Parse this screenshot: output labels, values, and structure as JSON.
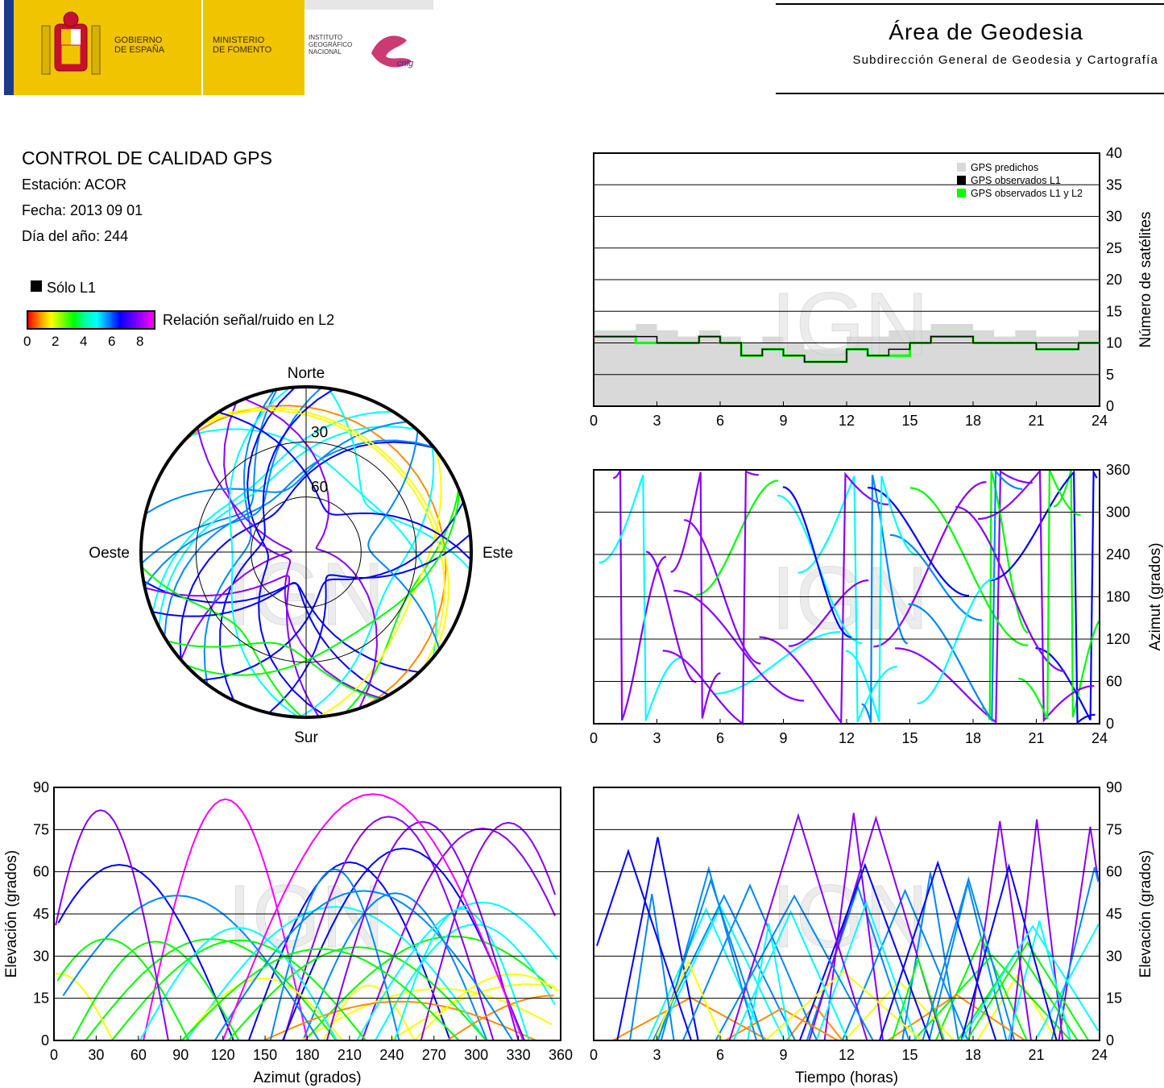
{
  "header": {
    "gobierno": [
      "GOBIERNO",
      "DE ESPAÑA"
    ],
    "ministerio": [
      "MINISTERIO",
      "DE FOMENTO"
    ],
    "instituto": [
      "INSTITUTO",
      "GEOGRÁFICO",
      "NACIONAL"
    ],
    "cnig_logo": "cnig",
    "area_title": "Área de Geodesia",
    "area_subtitle": "Subdirección General de Geodesia y Cartografía"
  },
  "info": {
    "title": "CONTROL DE CALIDAD GPS",
    "station": "Estación: ACOR",
    "date": "Fecha: 2013 09 01",
    "doy": "Día del año: 244",
    "legend_l1": "Sólo L1",
    "colorbar_label": "Relación señal/ruido en L2",
    "colorbar_ticks": [
      "0",
      "2",
      "4",
      "6",
      "8"
    ]
  },
  "watermark": "IGN",
  "colors": {
    "predicted": "#d9d9d9",
    "observed_l1": "#000000",
    "observed_l1l2": "#00ff00",
    "arc_palette": [
      "#ff0000",
      "#ff8c00",
      "#ffff00",
      "#00ff00",
      "#00ffff",
      "#0088ff",
      "#0000ff",
      "#8800ff",
      "#ff00ff"
    ]
  },
  "chart_data": [
    {
      "type": "area",
      "id": "satellite-count",
      "ylabel": "Número de satélites",
      "ylim": [
        0,
        40
      ],
      "yticks": [
        "0",
        "5",
        "10",
        "15",
        "20",
        "25",
        "30",
        "35",
        "40"
      ],
      "xlim": [
        0,
        24
      ],
      "xticks": [
        "0",
        "3",
        "6",
        "9",
        "12",
        "15",
        "18",
        "21",
        "24"
      ],
      "legend": [
        "GPS predichos",
        "GPS observados L1",
        "GPS observados L1 y L2"
      ],
      "legend_position": "top-right",
      "x": [
        0,
        1,
        2,
        3,
        4,
        5,
        6,
        7,
        8,
        9,
        10,
        11,
        12,
        13,
        14,
        15,
        16,
        17,
        18,
        19,
        20,
        21,
        22,
        23,
        24
      ],
      "series": [
        {
          "name": "GPS predichos",
          "values": [
            12,
            12,
            13,
            12,
            11,
            12,
            11,
            10,
            11,
            10,
            9,
            9,
            11,
            11,
            12,
            12,
            13,
            13,
            12,
            11,
            12,
            11,
            11,
            12,
            12
          ]
        },
        {
          "name": "GPS observados L1",
          "values": [
            11,
            11,
            11,
            10,
            10,
            11,
            10,
            8,
            9,
            8,
            7,
            7,
            9,
            8,
            9,
            10,
            11,
            11,
            10,
            10,
            10,
            9,
            9,
            10,
            10
          ]
        },
        {
          "name": "GPS observados L1 y L2",
          "values": [
            11,
            11,
            10,
            10,
            10,
            11,
            10,
            8,
            9,
            8,
            7,
            7,
            9,
            8,
            8,
            10,
            11,
            11,
            10,
            10,
            10,
            9,
            9,
            10,
            10
          ]
        }
      ]
    },
    {
      "type": "scatter",
      "id": "skyplot",
      "labels": {
        "north": "Norte",
        "south": "Sur",
        "east": "Este",
        "west": "Oeste"
      },
      "ring_labels": [
        "30",
        "60"
      ],
      "rings_elevation": [
        0,
        30,
        60
      ]
    },
    {
      "type": "scatter",
      "id": "azimuth-time",
      "ylabel": "Azimut (grados)",
      "ylim": [
        0,
        360
      ],
      "yticks": [
        "0",
        "60",
        "120",
        "180",
        "240",
        "300",
        "360"
      ],
      "xlim": [
        0,
        24
      ],
      "xticks": [
        "0",
        "3",
        "6",
        "9",
        "12",
        "15",
        "18",
        "21",
        "24"
      ]
    },
    {
      "type": "scatter",
      "id": "elevation-azimuth",
      "xlabel": "Azimut (grados)",
      "ylabel": "Elevación (grados)",
      "xlim": [
        0,
        360
      ],
      "ylim": [
        0,
        90
      ],
      "xticks": [
        "0",
        "30",
        "60",
        "90",
        "120",
        "150",
        "180",
        "210",
        "240",
        "270",
        "300",
        "330",
        "360"
      ],
      "yticks": [
        "0",
        "15",
        "30",
        "45",
        "60",
        "75",
        "90"
      ]
    },
    {
      "type": "scatter",
      "id": "elevation-time",
      "xlabel": "Tiempo (horas)",
      "ylabel": "Elevación (grados)",
      "xlim": [
        0,
        24
      ],
      "ylim": [
        0,
        90
      ],
      "xticks": [
        "0",
        "3",
        "6",
        "9",
        "12",
        "15",
        "18",
        "21",
        "24"
      ],
      "yticks": [
        "0",
        "15",
        "30",
        "45",
        "60",
        "75",
        "90"
      ]
    }
  ]
}
